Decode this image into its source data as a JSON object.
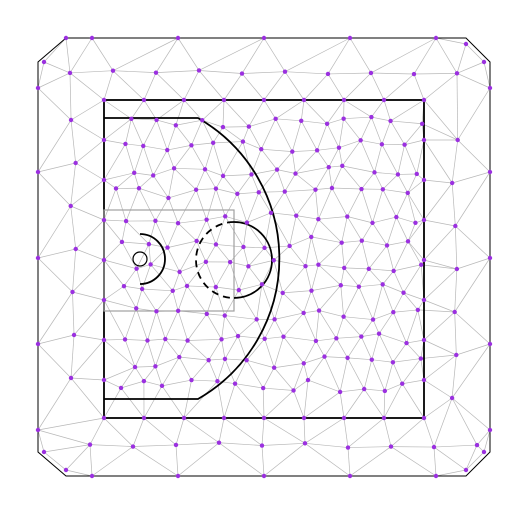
{
  "colors": {
    "background": "#ffffff",
    "mesh_edge": "#b8b8b8",
    "node": "#9b30e0",
    "court_line": "#000000",
    "key_line": "#a0a0a0"
  },
  "icons": {
    "mesh": "triangular-mesh",
    "court": "basketball-half-court"
  }
}
